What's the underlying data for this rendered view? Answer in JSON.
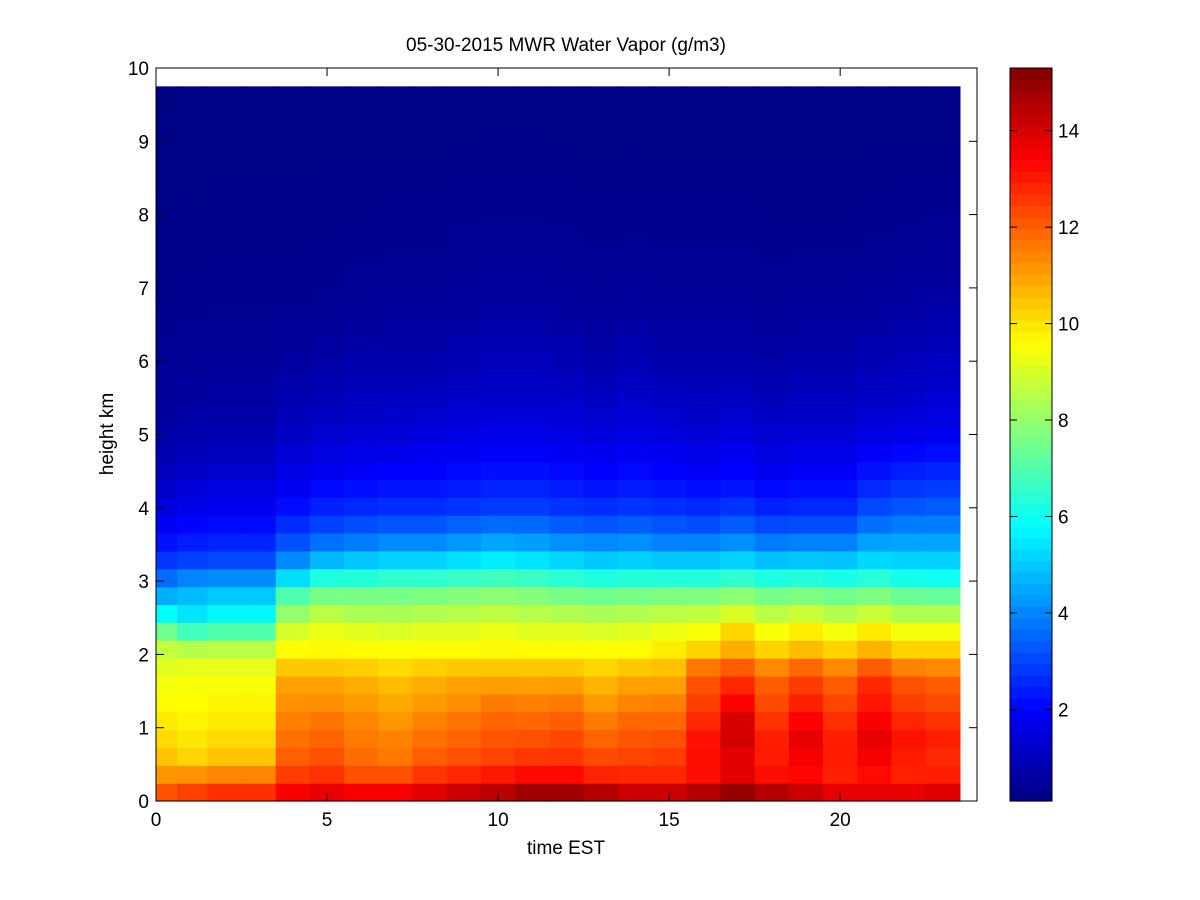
{
  "chart_data": {
    "type": "heatmap",
    "title": "05-30-2015 MWR Water Vapor (g/m3)",
    "xlabel": "time EST",
    "ylabel": "height km",
    "xlim": [
      0,
      24
    ],
    "ylim": [
      0,
      10
    ],
    "x_ticks": [
      0,
      5,
      10,
      15,
      20
    ],
    "y_ticks": [
      0,
      1,
      2,
      3,
      4,
      5,
      6,
      7,
      8,
      9,
      10
    ],
    "colormap": "jet",
    "colorbar": {
      "range": [
        0.1,
        15.3
      ],
      "ticks": [
        2,
        4,
        6,
        8,
        10,
        12,
        14
      ]
    },
    "x_centers": [
      0.25,
      1.0,
      2.0,
      3.0,
      4.0,
      5.0,
      6.0,
      7.0,
      8.0,
      9.0,
      10.0,
      11.0,
      12.0,
      13.0,
      14.0,
      15.0,
      16.0,
      17.0,
      18.0,
      19.0,
      20.0,
      21.0,
      22.0,
      23.0
    ],
    "y_profile_heights": [
      0.0,
      0.2,
      0.4,
      0.6,
      0.8,
      1.0,
      1.2,
      1.4,
      1.6,
      1.8,
      2.0,
      2.2,
      2.4,
      2.6,
      2.8,
      3.0,
      3.2,
      3.4,
      3.6,
      3.8,
      4.0,
      4.2,
      4.4,
      4.6,
      4.8,
      5.0,
      5.2,
      5.4,
      5.6,
      5.8,
      6.0,
      6.2,
      6.4,
      6.6,
      6.8,
      7.0,
      7.5,
      8.0,
      8.5,
      9.0,
      9.5,
      9.75
    ],
    "profiles": [
      [
        12.5,
        12.0,
        11.0,
        10.5,
        10.2,
        10.0,
        9.8,
        9.6,
        9.4,
        9.2,
        9.0,
        8.2,
        7.0,
        5.5,
        4.6,
        3.8,
        3.0,
        2.5,
        2.1,
        1.8,
        1.5,
        1.3,
        1.1,
        0.95,
        0.8,
        0.7,
        0.6,
        0.55,
        0.5,
        0.45,
        0.4,
        0.38,
        0.35,
        0.32,
        0.3,
        0.28,
        0.25,
        0.22,
        0.2,
        0.18,
        0.15,
        0.15
      ],
      [
        12.8,
        12.2,
        11.0,
        10.2,
        10.0,
        9.8,
        9.7,
        9.6,
        9.5,
        9.3,
        9.0,
        7.6,
        6.2,
        5.2,
        4.8,
        4.2,
        3.2,
        2.7,
        2.3,
        2.0,
        1.7,
        1.5,
        1.3,
        1.1,
        0.9,
        0.8,
        0.7,
        0.6,
        0.55,
        0.5,
        0.45,
        0.4,
        0.38,
        0.35,
        0.32,
        0.3,
        0.27,
        0.24,
        0.21,
        0.18,
        0.16,
        0.16
      ],
      [
        13.0,
        12.5,
        11.2,
        10.5,
        10.2,
        10.0,
        9.8,
        9.7,
        9.5,
        9.3,
        9.0,
        7.8,
        6.5,
        5.5,
        5.0,
        4.3,
        3.3,
        2.8,
        2.4,
        2.1,
        1.8,
        1.6,
        1.4,
        1.2,
        1.0,
        0.85,
        0.75,
        0.65,
        0.6,
        0.55,
        0.5,
        0.45,
        0.4,
        0.37,
        0.34,
        0.31,
        0.28,
        0.25,
        0.22,
        0.19,
        0.17,
        0.17
      ],
      [
        13.0,
        12.5,
        11.2,
        10.5,
        10.2,
        10.0,
        9.8,
        9.7,
        9.5,
        9.3,
        9.0,
        7.8,
        6.5,
        5.5,
        5.0,
        4.3,
        3.3,
        2.8,
        2.4,
        2.1,
        1.8,
        1.6,
        1.4,
        1.2,
        1.0,
        0.85,
        0.75,
        0.65,
        0.6,
        0.55,
        0.5,
        0.45,
        0.4,
        0.37,
        0.34,
        0.31,
        0.28,
        0.25,
        0.22,
        0.19,
        0.17,
        0.17
      ],
      [
        13.8,
        13.3,
        12.3,
        12.0,
        11.8,
        11.6,
        11.4,
        11.2,
        11.0,
        10.5,
        9.8,
        9.3,
        8.8,
        7.8,
        7.0,
        5.6,
        4.4,
        3.6,
        3.0,
        2.6,
        2.2,
        1.9,
        1.7,
        1.5,
        1.3,
        1.1,
        1.0,
        0.9,
        0.8,
        0.7,
        0.6,
        0.5,
        0.45,
        0.4,
        0.35,
        0.32,
        0.28,
        0.25,
        0.22,
        0.19,
        0.17,
        0.17
      ],
      [
        14.0,
        13.5,
        12.5,
        12.2,
        12.0,
        11.8,
        11.5,
        11.2,
        11.0,
        10.5,
        9.8,
        9.5,
        9.2,
        8.4,
        7.6,
        6.6,
        5.2,
        4.2,
        3.4,
        2.9,
        2.5,
        2.2,
        1.9,
        1.7,
        1.5,
        1.3,
        1.1,
        1.0,
        0.9,
        0.8,
        0.7,
        0.6,
        0.5,
        0.45,
        0.4,
        0.35,
        0.3,
        0.26,
        0.23,
        0.2,
        0.18,
        0.18
      ],
      [
        13.8,
        13.3,
        12.0,
        11.8,
        11.6,
        11.5,
        11.3,
        11.0,
        10.8,
        10.4,
        9.8,
        9.4,
        9.0,
        8.2,
        7.6,
        6.6,
        5.4,
        4.4,
        3.6,
        3.1,
        2.6,
        2.3,
        2.0,
        1.8,
        1.6,
        1.4,
        1.2,
        1.1,
        1.0,
        0.9,
        0.8,
        0.7,
        0.6,
        0.5,
        0.45,
        0.4,
        0.33,
        0.28,
        0.24,
        0.21,
        0.18,
        0.18
      ],
      [
        13.8,
        13.3,
        12.0,
        11.6,
        11.5,
        11.3,
        11.0,
        10.8,
        10.6,
        10.2,
        9.7,
        9.3,
        8.9,
        8.2,
        7.6,
        6.8,
        5.6,
        4.6,
        3.8,
        3.2,
        2.7,
        2.4,
        2.1,
        1.9,
        1.6,
        1.4,
        1.3,
        1.1,
        1.0,
        0.9,
        0.8,
        0.7,
        0.6,
        0.55,
        0.5,
        0.45,
        0.35,
        0.3,
        0.25,
        0.21,
        0.18,
        0.18
      ],
      [
        14.2,
        13.6,
        12.4,
        12.0,
        11.8,
        11.6,
        11.3,
        11.0,
        10.8,
        10.4,
        9.8,
        9.4,
        9.0,
        8.3,
        7.7,
        6.8,
        5.6,
        4.6,
        3.8,
        3.2,
        2.7,
        2.4,
        2.1,
        1.9,
        1.7,
        1.5,
        1.3,
        1.2,
        1.0,
        0.9,
        0.8,
        0.7,
        0.6,
        0.55,
        0.5,
        0.45,
        0.35,
        0.3,
        0.25,
        0.21,
        0.18,
        0.18
      ],
      [
        14.5,
        14.0,
        12.6,
        12.2,
        12.0,
        11.8,
        11.5,
        11.2,
        11.0,
        10.5,
        9.8,
        9.4,
        9.0,
        8.4,
        7.8,
        6.9,
        5.8,
        4.8,
        4.0,
        3.4,
        2.8,
        2.5,
        2.2,
        2.0,
        1.8,
        1.6,
        1.4,
        1.3,
        1.1,
        1.0,
        0.9,
        0.8,
        0.7,
        0.6,
        0.55,
        0.5,
        0.4,
        0.33,
        0.27,
        0.22,
        0.19,
        0.19
      ],
      [
        14.8,
        14.2,
        12.8,
        12.4,
        12.2,
        12.0,
        11.8,
        11.5,
        11.0,
        10.5,
        9.8,
        9.5,
        9.2,
        8.5,
        7.9,
        7.0,
        6.0,
        5.0,
        4.2,
        3.5,
        2.9,
        2.6,
        2.3,
        2.1,
        1.9,
        1.7,
        1.5,
        1.3,
        1.2,
        1.1,
        1.0,
        0.9,
        0.8,
        0.7,
        0.6,
        0.55,
        0.42,
        0.35,
        0.28,
        0.23,
        0.2,
        0.2
      ],
      [
        15.2,
        14.6,
        13.0,
        12.6,
        12.3,
        12.0,
        11.7,
        11.4,
        11.0,
        10.5,
        9.8,
        9.4,
        9.0,
        8.4,
        7.8,
        6.9,
        5.8,
        4.9,
        4.1,
        3.5,
        2.9,
        2.6,
        2.3,
        2.1,
        1.9,
        1.7,
        1.5,
        1.3,
        1.2,
        1.1,
        1.0,
        0.9,
        0.8,
        0.7,
        0.6,
        0.55,
        0.42,
        0.35,
        0.28,
        0.23,
        0.2,
        0.2
      ],
      [
        15.2,
        14.6,
        13.0,
        12.6,
        12.4,
        12.2,
        11.8,
        11.5,
        11.0,
        10.5,
        9.8,
        9.4,
        9.0,
        8.3,
        7.6,
        6.7,
        5.6,
        4.7,
        3.9,
        3.3,
        2.8,
        2.5,
        2.2,
        2.0,
        1.8,
        1.6,
        1.4,
        1.3,
        1.1,
        1.0,
        0.9,
        0.8,
        0.7,
        0.6,
        0.55,
        0.5,
        0.4,
        0.33,
        0.27,
        0.22,
        0.19,
        0.19
      ],
      [
        14.8,
        14.3,
        12.6,
        12.3,
        12.0,
        11.7,
        11.4,
        11.0,
        10.7,
        10.3,
        9.7,
        9.3,
        8.9,
        8.2,
        7.5,
        6.5,
        5.4,
        4.5,
        3.8,
        3.2,
        2.7,
        2.4,
        2.1,
        1.9,
        1.7,
        1.5,
        1.3,
        1.2,
        1.0,
        0.9,
        0.8,
        0.7,
        0.6,
        0.55,
        0.5,
        0.45,
        0.36,
        0.3,
        0.25,
        0.21,
        0.18,
        0.18
      ],
      [
        14.5,
        14.0,
        12.6,
        12.4,
        12.2,
        12.0,
        11.7,
        11.3,
        11.0,
        10.5,
        9.8,
        9.4,
        9.0,
        8.3,
        7.6,
        6.6,
        5.5,
        4.6,
        3.9,
        3.3,
        2.8,
        2.5,
        2.2,
        2.0,
        1.8,
        1.6,
        1.4,
        1.3,
        1.1,
        1.0,
        0.9,
        0.8,
        0.7,
        0.6,
        0.55,
        0.5,
        0.38,
        0.31,
        0.26,
        0.21,
        0.18,
        0.18
      ],
      [
        14.5,
        14.0,
        12.6,
        12.5,
        12.3,
        12.0,
        11.7,
        11.4,
        11.0,
        10.6,
        10.0,
        9.6,
        9.2,
        8.4,
        7.7,
        6.6,
        5.4,
        4.4,
        3.7,
        3.2,
        2.7,
        2.4,
        2.1,
        1.9,
        1.7,
        1.5,
        1.3,
        1.2,
        1.0,
        0.9,
        0.8,
        0.7,
        0.6,
        0.55,
        0.5,
        0.45,
        0.36,
        0.3,
        0.25,
        0.21,
        0.18,
        0.18
      ],
      [
        14.8,
        14.3,
        13.0,
        13.2,
        13.2,
        13.0,
        12.6,
        12.4,
        12.2,
        11.8,
        10.5,
        9.8,
        9.3,
        8.5,
        7.7,
        6.6,
        5.4,
        4.4,
        3.7,
        3.1,
        2.6,
        2.3,
        2.0,
        1.8,
        1.6,
        1.4,
        1.2,
        1.1,
        1.0,
        0.9,
        0.8,
        0.7,
        0.6,
        0.55,
        0.5,
        0.45,
        0.36,
        0.3,
        0.25,
        0.21,
        0.18,
        0.18
      ],
      [
        15.3,
        14.8,
        13.6,
        13.8,
        14.0,
        14.2,
        13.8,
        13.2,
        12.8,
        12.2,
        11.0,
        10.5,
        10.0,
        8.8,
        7.9,
        6.8,
        5.6,
        4.6,
        3.9,
        3.3,
        2.8,
        2.4,
        2.1,
        1.9,
        1.7,
        1.5,
        1.3,
        1.2,
        1.0,
        0.9,
        0.8,
        0.7,
        0.6,
        0.55,
        0.5,
        0.45,
        0.36,
        0.3,
        0.25,
        0.21,
        0.18,
        0.18
      ],
      [
        14.8,
        14.3,
        13.0,
        13.0,
        13.0,
        12.8,
        12.5,
        12.2,
        12.0,
        11.5,
        10.5,
        9.8,
        9.3,
        8.4,
        7.6,
        6.5,
        5.3,
        4.3,
        3.6,
        3.0,
        2.5,
        2.2,
        1.9,
        1.7,
        1.5,
        1.3,
        1.2,
        1.0,
        0.9,
        0.8,
        0.7,
        0.6,
        0.55,
        0.5,
        0.45,
        0.4,
        0.33,
        0.28,
        0.24,
        0.2,
        0.17,
        0.17
      ],
      [
        14.5,
        14.0,
        13.2,
        13.5,
        13.8,
        13.6,
        13.2,
        12.8,
        12.5,
        12.0,
        10.8,
        10.2,
        9.6,
        8.6,
        7.7,
        6.6,
        5.4,
        4.4,
        3.7,
        3.1,
        2.6,
        2.3,
        2.0,
        1.8,
        1.6,
        1.4,
        1.2,
        1.1,
        1.0,
        0.9,
        0.8,
        0.7,
        0.6,
        0.55,
        0.5,
        0.45,
        0.35,
        0.29,
        0.24,
        0.2,
        0.17,
        0.17
      ],
      [
        14.0,
        13.6,
        12.8,
        13.0,
        13.0,
        12.8,
        12.6,
        12.3,
        12.0,
        11.5,
        10.5,
        9.8,
        9.2,
        8.3,
        7.5,
        6.4,
        5.3,
        4.4,
        3.7,
        3.1,
        2.6,
        2.3,
        2.0,
        1.8,
        1.6,
        1.4,
        1.2,
        1.1,
        1.0,
        0.9,
        0.8,
        0.7,
        0.6,
        0.55,
        0.5,
        0.45,
        0.35,
        0.29,
        0.24,
        0.2,
        0.17,
        0.17
      ],
      [
        14.0,
        13.6,
        13.2,
        13.5,
        13.8,
        13.6,
        13.3,
        13.0,
        12.8,
        12.2,
        11.0,
        10.3,
        9.6,
        8.6,
        7.7,
        6.6,
        5.6,
        4.8,
        4.2,
        3.6,
        3.1,
        2.7,
        2.4,
        2.1,
        1.9,
        1.6,
        1.4,
        1.2,
        1.1,
        1.0,
        0.9,
        0.8,
        0.7,
        0.6,
        0.55,
        0.5,
        0.38,
        0.31,
        0.26,
        0.21,
        0.18,
        0.18
      ],
      [
        14.0,
        13.5,
        12.8,
        13.0,
        13.2,
        13.0,
        12.7,
        12.4,
        12.2,
        11.6,
        10.5,
        9.8,
        9.2,
        8.2,
        7.4,
        6.3,
        5.4,
        4.8,
        4.3,
        3.8,
        3.3,
        2.9,
        2.6,
        2.3,
        2.0,
        1.7,
        1.5,
        1.3,
        1.2,
        1.1,
        1.0,
        0.9,
        0.8,
        0.7,
        0.6,
        0.55,
        0.42,
        0.34,
        0.27,
        0.22,
        0.19,
        0.19
      ],
      [
        14.3,
        13.6,
        12.8,
        12.8,
        13.0,
        12.8,
        12.5,
        12.2,
        12.0,
        11.5,
        10.5,
        9.8,
        9.2,
        8.2,
        7.3,
        6.2,
        5.4,
        4.8,
        4.3,
        3.8,
        3.4,
        3.0,
        2.7,
        2.4,
        2.1,
        1.8,
        1.6,
        1.4,
        1.3,
        1.2,
        1.1,
        1.0,
        0.9,
        0.8,
        0.7,
        0.6,
        0.45,
        0.36,
        0.28,
        0.22,
        0.19,
        0.19
      ]
    ]
  }
}
